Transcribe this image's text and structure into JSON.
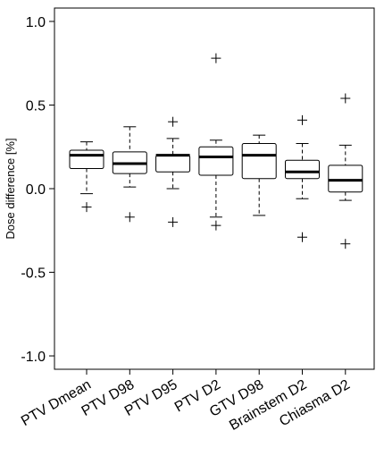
{
  "chart_data": {
    "type": "box",
    "ylabel": "Dose difference [%]",
    "ylim": [
      -1.08,
      1.08
    ],
    "yticks": [
      {
        "value": 1.0,
        "label": "1.0"
      },
      {
        "value": 0.5,
        "label": "0.5"
      },
      {
        "value": 0.0,
        "label": "0.0"
      },
      {
        "value": -0.5,
        "label": "-0.5"
      },
      {
        "value": -1.0,
        "label": "-1.0"
      }
    ],
    "grid": false,
    "categories": [
      "PTV Dmean",
      "PTV D98",
      "PTV D95",
      "PTV D2",
      "GTV D98",
      "Brainstem D2",
      "Chiasma D2"
    ],
    "boxes": [
      {
        "whisker_low": -0.03,
        "q1": 0.12,
        "median": 0.2,
        "q3": 0.23,
        "whisker_high": 0.28,
        "outliers": [
          -0.11
        ]
      },
      {
        "whisker_low": 0.01,
        "q1": 0.09,
        "median": 0.15,
        "q3": 0.22,
        "whisker_high": 0.37,
        "outliers": [
          -0.17
        ]
      },
      {
        "whisker_low": 0.0,
        "q1": 0.1,
        "median": 0.2,
        "q3": 0.2,
        "whisker_high": 0.3,
        "outliers": [
          0.4,
          -0.2
        ]
      },
      {
        "whisker_low": -0.17,
        "q1": 0.08,
        "median": 0.19,
        "q3": 0.25,
        "whisker_high": 0.29,
        "outliers": [
          0.78,
          -0.22
        ]
      },
      {
        "whisker_low": -0.16,
        "q1": 0.06,
        "median": 0.2,
        "q3": 0.27,
        "whisker_high": 0.32,
        "outliers": []
      },
      {
        "whisker_low": -0.06,
        "q1": 0.06,
        "median": 0.1,
        "q3": 0.17,
        "whisker_high": 0.27,
        "outliers": [
          0.41,
          -0.29
        ]
      },
      {
        "whisker_low": -0.07,
        "q1": -0.02,
        "median": 0.05,
        "q3": 0.14,
        "whisker_high": 0.26,
        "outliers": [
          0.54,
          -0.33
        ]
      }
    ]
  }
}
